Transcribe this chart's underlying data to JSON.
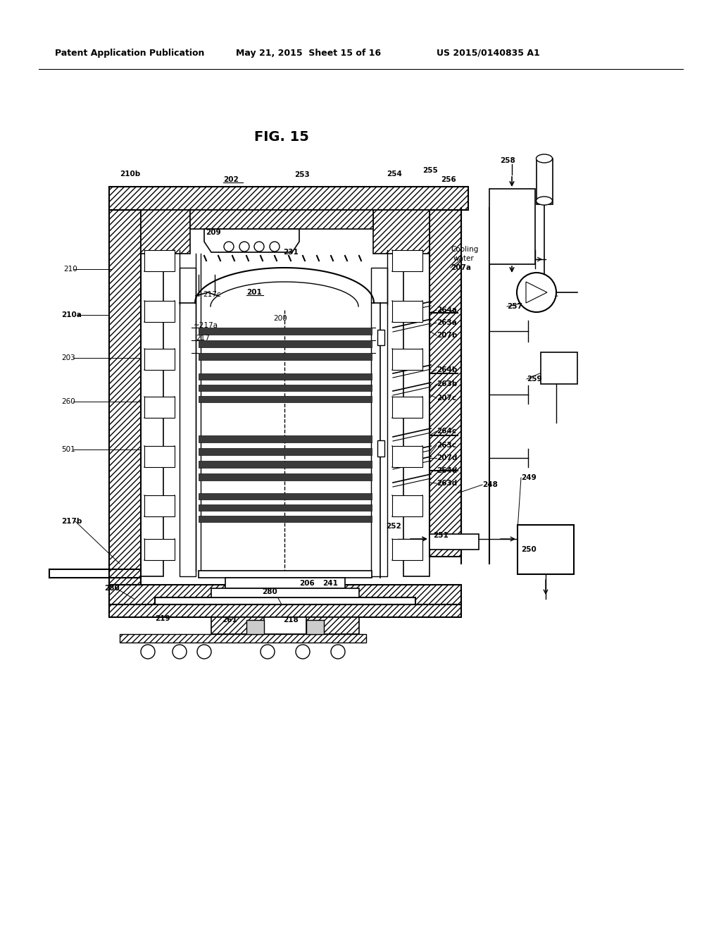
{
  "header_left": "Patent Application Publication",
  "header_mid": "May 21, 2015  Sheet 15 of 16",
  "header_right": "US 2015/0140835 A1",
  "fig_title": "FIG. 15",
  "bg_color": "#ffffff",
  "line_color": "#000000"
}
